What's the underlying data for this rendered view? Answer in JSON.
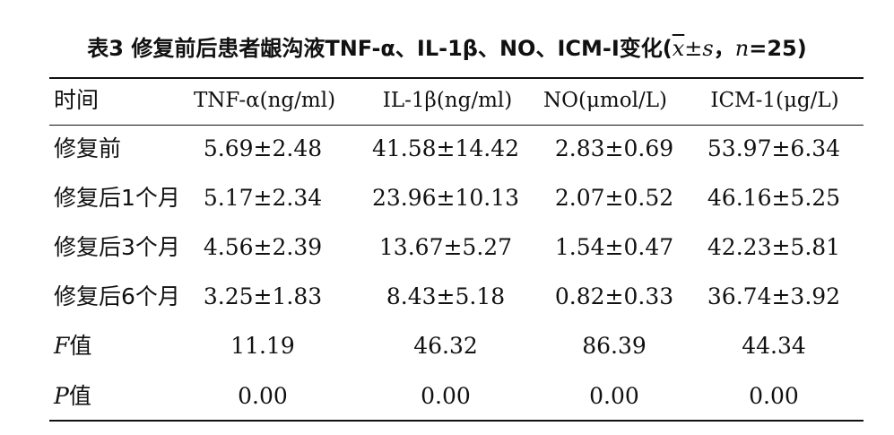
{
  "caption": {
    "prefix": "表3  修复前后患者龈沟液TNF-α、IL-1β、NO、ICM-Ⅰ变化(",
    "xbar": "x",
    "pm_s": "±s",
    "sep": "，",
    "n_sym": "n",
    "n_val": "=25)"
  },
  "header": {
    "time": "时间",
    "cols": [
      "TNF-α(ng/ml)",
      "IL-1β(ng/ml)",
      "NO(μmol/L)",
      "ICM-1(μg/L)"
    ]
  },
  "rows": [
    {
      "label": "修复前",
      "values": [
        "5.69±2.48",
        "41.58±14.42",
        "2.83±0.69",
        "53.97±6.34"
      ]
    },
    {
      "label": "修复后1个月",
      "values": [
        "5.17±2.34",
        "23.96±10.13",
        "2.07±0.52",
        "46.16±5.25"
      ]
    },
    {
      "label": "修复后3个月",
      "values": [
        "4.56±2.39",
        "13.67±5.27",
        "1.54±0.47",
        "42.23±5.81"
      ]
    },
    {
      "label": "修复后6个月",
      "values": [
        "3.25±1.83",
        "8.43±5.18",
        "0.82±0.33",
        "36.74±3.92"
      ]
    }
  ],
  "stats": [
    {
      "sym": "F",
      "suffix": "值",
      "values": [
        "11.19",
        "46.32",
        "86.39",
        "44.34"
      ]
    },
    {
      "sym": "P",
      "suffix": "值",
      "values": [
        "0.00",
        "0.00",
        "0.00",
        "0.00"
      ]
    }
  ]
}
